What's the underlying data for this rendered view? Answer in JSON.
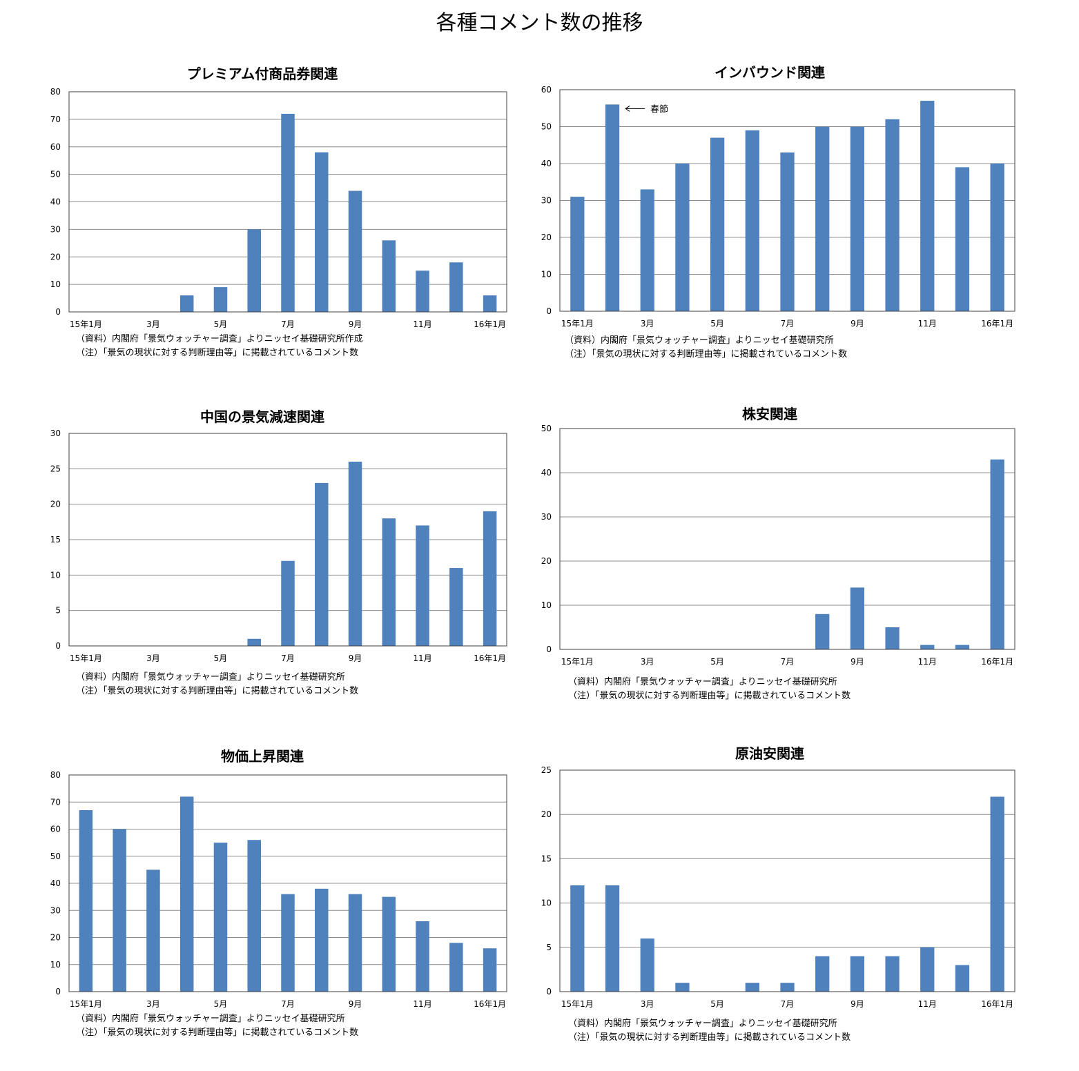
{
  "title": "各種コメント数の推移",
  "chart_data": [
    {
      "type": "bar",
      "title": "プレミアム付商品券関連",
      "categories": [
        "15年1月",
        "2月",
        "3月",
        "4月",
        "5月",
        "6月",
        "7月",
        "8月",
        "9月",
        "10月",
        "11月",
        "12月",
        "16年1月"
      ],
      "tick_labels": [
        "15年1月",
        "3月",
        "5月",
        "7月",
        "9月",
        "11月",
        "16年1月"
      ],
      "values": [
        0,
        0,
        0,
        6,
        9,
        30,
        72,
        58,
        44,
        26,
        15,
        18,
        6
      ],
      "ylim": [
        0,
        80
      ],
      "yticks": [
        0,
        10,
        20,
        30,
        40,
        50,
        60,
        70,
        80
      ],
      "grid": true,
      "color": "#4f81bd",
      "notes": [
        "（資料）内閣府「景気ウォッチャー調査」よりニッセイ基礎研究所作成",
        "（注）「景気の現状に対する判断理由等」に掲載されているコメント数"
      ]
    },
    {
      "type": "bar",
      "title": "インバウンド関連",
      "categories": [
        "15年1月",
        "2月",
        "3月",
        "4月",
        "5月",
        "6月",
        "7月",
        "8月",
        "9月",
        "10月",
        "11月",
        "12月",
        "16年1月"
      ],
      "tick_labels": [
        "15年1月",
        "3月",
        "5月",
        "7月",
        "9月",
        "11月",
        "16年1月"
      ],
      "values": [
        31,
        56,
        33,
        40,
        47,
        49,
        43,
        50,
        50,
        52,
        57,
        39,
        40
      ],
      "ylim": [
        0,
        60
      ],
      "yticks": [
        0,
        10,
        20,
        30,
        40,
        50,
        60
      ],
      "grid": true,
      "color": "#4f81bd",
      "annotation": {
        "text": "春節",
        "bar_index": 1
      },
      "notes": [
        "（資料）内閣府「景気ウォッチャー調査」よりニッセイ基礎研究所",
        "（注）「景気の現状に対する判断理由等」に掲載されているコメント数"
      ]
    },
    {
      "type": "bar",
      "title": "中国の景気減速関連",
      "categories": [
        "15年1月",
        "2月",
        "3月",
        "4月",
        "5月",
        "6月",
        "7月",
        "8月",
        "9月",
        "10月",
        "11月",
        "12月",
        "16年1月"
      ],
      "tick_labels": [
        "15年1月",
        "3月",
        "5月",
        "7月",
        "9月",
        "11月",
        "16年1月"
      ],
      "values": [
        0,
        0,
        0,
        0,
        0,
        1,
        12,
        23,
        26,
        18,
        17,
        11,
        19
      ],
      "ylim": [
        0,
        30
      ],
      "yticks": [
        0,
        5,
        10,
        15,
        20,
        25,
        30
      ],
      "grid": true,
      "color": "#4f81bd",
      "notes": [
        "（資料）内閣府「景気ウォッチャー調査」よりニッセイ基礎研究所",
        "（注）「景気の現状に対する判断理由等」に掲載されているコメント数"
      ]
    },
    {
      "type": "bar",
      "title": "株安関連",
      "categories": [
        "15年1月",
        "2月",
        "3月",
        "4月",
        "5月",
        "6月",
        "7月",
        "8月",
        "9月",
        "10月",
        "11月",
        "12月",
        "16年1月"
      ],
      "tick_labels": [
        "15年1月",
        "3月",
        "5月",
        "7月",
        "9月",
        "11月",
        "16年1月"
      ],
      "values": [
        0,
        0,
        0,
        0,
        0,
        0,
        0,
        8,
        14,
        5,
        1,
        1,
        43
      ],
      "ylim": [
        0,
        50
      ],
      "yticks": [
        0,
        10,
        20,
        30,
        40,
        50
      ],
      "grid": true,
      "color": "#4f81bd",
      "notes": [
        "（資料）内閣府「景気ウォッチャー調査」よりニッセイ基礎研究所",
        "（注）「景気の現状に対する判断理由等」に掲載されているコメント数"
      ]
    },
    {
      "type": "bar",
      "title": "物価上昇関連",
      "categories": [
        "15年1月",
        "2月",
        "3月",
        "4月",
        "5月",
        "6月",
        "7月",
        "8月",
        "9月",
        "10月",
        "11月",
        "12月",
        "16年1月"
      ],
      "tick_labels": [
        "15年1月",
        "3月",
        "5月",
        "7月",
        "9月",
        "11月",
        "16年1月"
      ],
      "values": [
        67,
        60,
        45,
        72,
        55,
        56,
        36,
        38,
        36,
        35,
        26,
        18,
        16
      ],
      "ylim": [
        0,
        80
      ],
      "yticks": [
        0,
        10,
        20,
        30,
        40,
        50,
        60,
        70,
        80
      ],
      "grid": true,
      "color": "#4f81bd",
      "notes": [
        "（資料）内閣府「景気ウォッチャー調査」よりニッセイ基礎研究所",
        "（注）「景気の現状に対する判断理由等」に掲載されているコメント数"
      ]
    },
    {
      "type": "bar",
      "title": "原油安関連",
      "categories": [
        "15年1月",
        "2月",
        "3月",
        "4月",
        "5月",
        "6月",
        "7月",
        "8月",
        "9月",
        "10月",
        "11月",
        "12月",
        "16年1月"
      ],
      "tick_labels": [
        "15年1月",
        "3月",
        "5月",
        "7月",
        "9月",
        "11月",
        "16年1月"
      ],
      "values": [
        12,
        12,
        6,
        1,
        0,
        1,
        1,
        4,
        4,
        4,
        5,
        3,
        22
      ],
      "ylim": [
        0,
        25
      ],
      "yticks": [
        0,
        5,
        10,
        15,
        20,
        25
      ],
      "grid": true,
      "color": "#4f81bd",
      "notes": [
        "（資料）内閣府「景気ウォッチャー調査」よりニッセイ基礎研究所",
        "（注）「景気の現状に対する判断理由等」に掲載されているコメント数"
      ]
    }
  ]
}
